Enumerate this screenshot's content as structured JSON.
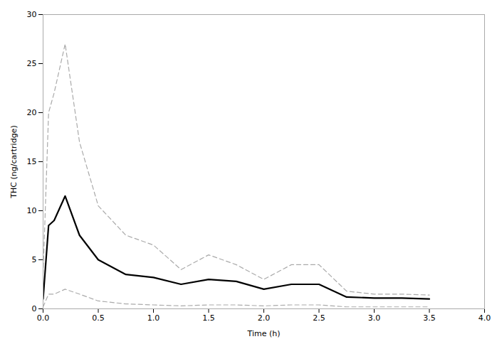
{
  "chart_data": {
    "type": "line",
    "xlabel": "Time (h)",
    "ylabel": "THC (ng/cartridge)",
    "x": [
      0.0,
      0.05,
      0.1,
      0.2,
      0.33,
      0.5,
      0.75,
      1.0,
      1.25,
      1.5,
      1.75,
      2.0,
      2.25,
      2.5,
      2.75,
      3.0,
      3.25,
      3.5
    ],
    "series": [
      {
        "color": "#aaaaaa",
        "line_style": "dashed",
        "values": [
          3.5,
          20.0,
          22.0,
          27.0,
          17.0,
          10.5,
          7.5,
          6.5,
          4.0,
          5.5,
          4.5,
          3.0,
          4.5,
          4.5,
          1.8,
          1.5,
          1.5,
          1.4
        ]
      },
      {
        "color": "#aaaaaa",
        "line_style": "dashed",
        "values": [
          0.2,
          1.5,
          1.5,
          2.0,
          1.5,
          0.8,
          0.5,
          0.4,
          0.3,
          0.4,
          0.4,
          0.3,
          0.4,
          0.4,
          0.2,
          0.2,
          0.2,
          0.2
        ]
      },
      {
        "color": "#000000",
        "line_style": "solid",
        "values": [
          1.0,
          8.5,
          9.0,
          11.5,
          7.5,
          5.0,
          3.5,
          3.2,
          2.5,
          3.0,
          2.8,
          2.0,
          2.5,
          2.5,
          1.2,
          1.1,
          1.1,
          1.0
        ]
      }
    ],
    "xlim": [
      0,
      4.0
    ],
    "ylim": [
      0,
      30
    ],
    "xticks": [
      {
        "value": 0.0,
        "label": "0.0"
      },
      0.5,
      {
        "value": 1.0,
        "label": "1.0"
      },
      1.5,
      {
        "value": 2.0,
        "label": "2.0"
      },
      2.5,
      {
        "value": 3.0,
        "label": "3.0"
      },
      3.5,
      {
        "value": 4.0,
        "label": "4.0"
      }
    ],
    "yticks": [
      0,
      5,
      10,
      15,
      20,
      25,
      30
    ],
    "grid": false
  }
}
